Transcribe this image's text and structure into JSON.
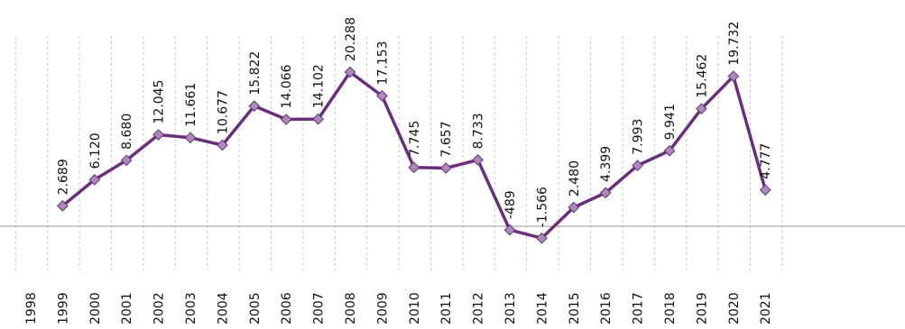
{
  "chart_data": {
    "type": "line",
    "title": "",
    "xlabel": "",
    "ylabel": "",
    "grid": "vertical dashed",
    "categories": [
      "1998",
      "1999",
      "2000",
      "2001",
      "2002",
      "2003",
      "2004",
      "2005",
      "2006",
      "2007",
      "2008",
      "2009",
      "2010",
      "2011",
      "2012",
      "2013",
      "2014",
      "2015",
      "2016",
      "2017",
      "2018",
      "2019",
      "2020",
      "2021"
    ],
    "series": [
      {
        "color": "#6a2f7a",
        "marker_color": "#a98ab8",
        "values": [
          null,
          2689,
          6120,
          8680,
          12045,
          11661,
          10677,
          15822,
          14066,
          14102,
          20288,
          17153,
          7745,
          7657,
          8733,
          -489,
          -1566,
          2480,
          4399,
          7993,
          9941,
          15462,
          19732,
          4777
        ],
        "labels": [
          "",
          "2.689",
          "6.120",
          "8.680",
          "12.045",
          "11.661",
          "10.677",
          "15.822",
          "14.066",
          "14.102",
          "20.288",
          "17.153",
          "7.745",
          "7.657",
          "8.733",
          "-489",
          "-1.566",
          "2.480",
          "4.399",
          "7.993",
          "9.941",
          "15.462",
          "19.732",
          "4.777"
        ]
      }
    ],
    "ylim": [
      -5000,
      25000
    ]
  }
}
